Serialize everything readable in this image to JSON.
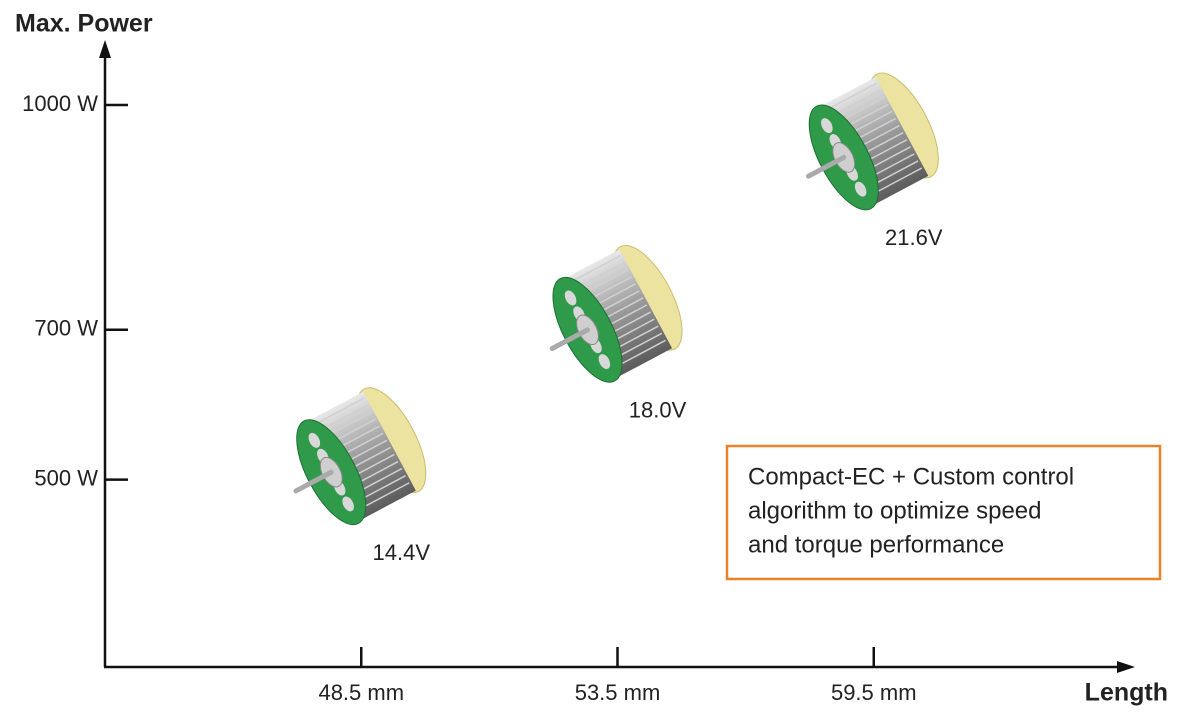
{
  "chart_data": {
    "type": "motor-scatter",
    "y_label": "Max. Power",
    "x_label": "Length",
    "categories": [
      "48.5 mm",
      "53.5 mm",
      "59.5 mm"
    ],
    "values": [
      510,
      700,
      930
    ],
    "point_labels": [
      "14.4V",
      "18.0V",
      "21.6V"
    ],
    "ylim": [
      250,
      1080
    ],
    "yticks": [
      {
        "value": 500,
        "label": "500 W"
      },
      {
        "value": 700,
        "label": "700 W"
      },
      {
        "value": 1000,
        "label": "1000 W"
      }
    ],
    "annotation": [
      "Compact-EC + Custom control",
      "algorithm to optimize speed",
      "and torque performance"
    ],
    "annotation_color": "#e8832a"
  }
}
